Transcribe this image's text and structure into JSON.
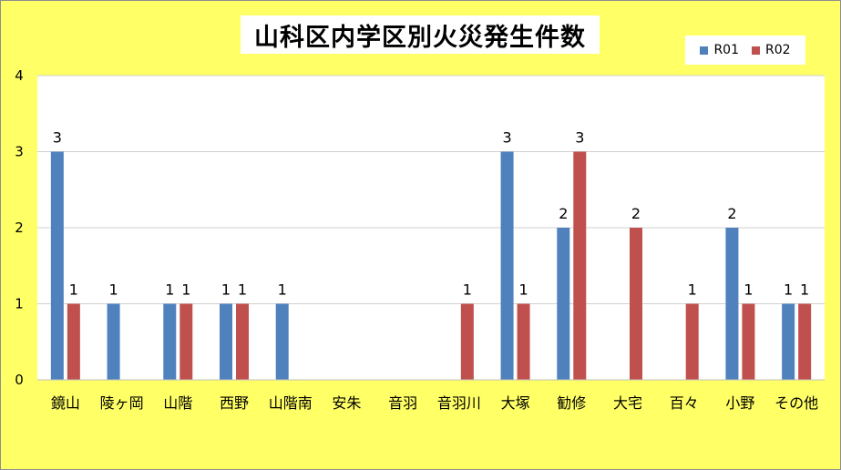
{
  "chart_data": {
    "type": "bar",
    "title": "山科区内学区別火災発生件数",
    "categories": [
      "鏡山",
      "陵ヶ岡",
      "山階",
      "西野",
      "山階南",
      "安朱",
      "音羽",
      "音羽川",
      "大塚",
      "勧修",
      "大宅",
      "百々",
      "小野",
      "その他"
    ],
    "series": [
      {
        "name": "R01",
        "color": "#4f81bd",
        "values": [
          3,
          1,
          1,
          1,
          1,
          0,
          0,
          0,
          3,
          2,
          0,
          0,
          2,
          1
        ]
      },
      {
        "name": "R02",
        "color": "#c0504d",
        "values": [
          1,
          0,
          1,
          1,
          0,
          0,
          0,
          1,
          1,
          3,
          2,
          1,
          1,
          1
        ]
      }
    ],
    "ylim": [
      0,
      4
    ],
    "yticks": [
      "0",
      "1",
      "2",
      "3",
      "4"
    ],
    "grid": true,
    "legend_position": "top-right",
    "data_labels": true
  }
}
